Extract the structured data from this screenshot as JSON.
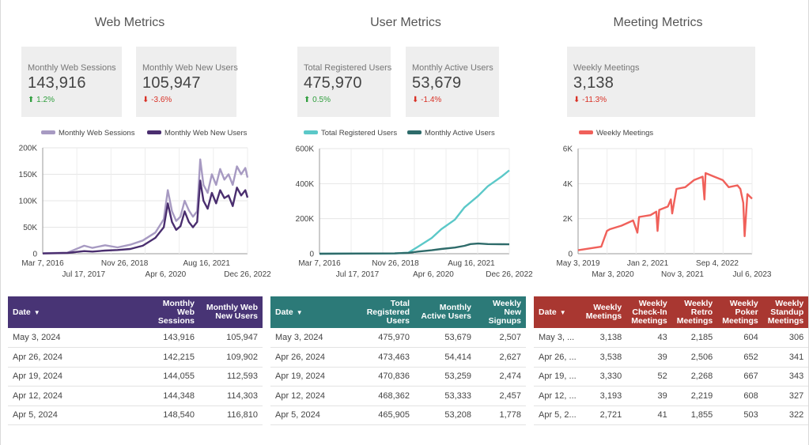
{
  "sections": {
    "web": {
      "title": "Web Metrics"
    },
    "user": {
      "title": "User Metrics"
    },
    "meeting": {
      "title": "Meeting Metrics"
    }
  },
  "kpis": {
    "web_sessions": {
      "label": "Monthly Web Sessions",
      "value": "143,916",
      "delta": "1.2%",
      "arrow": "⬆"
    },
    "web_new_users": {
      "label": "Monthly Web New Users",
      "value": "105,947",
      "delta": "-3.6%",
      "arrow": "⬇"
    },
    "total_registered": {
      "label": "Total Registered Users",
      "value": "475,970",
      "delta": "0.5%",
      "arrow": "⬆"
    },
    "monthly_active": {
      "label": "Monthly Active Users",
      "value": "53,679",
      "delta": "-1.4%",
      "arrow": "⬇"
    },
    "weekly_meetings": {
      "label": "Weekly Meetings",
      "value": "3,138",
      "delta": "-11.3%",
      "arrow": "⬇"
    }
  },
  "colors": {
    "web_sessions": "#a79ac2",
    "web_new_users": "#4a2e6f",
    "total_registered": "#5bc8c8",
    "monthly_active": "#2e6b6a",
    "weekly_meetings": "#f0605a",
    "header_web": "#483475",
    "header_user": "#2c7a78",
    "header_meeting": "#a93731"
  },
  "chart_data": [
    {
      "type": "line",
      "y_ticks": [
        "0",
        "50K",
        "100K",
        "150K",
        "200K"
      ],
      "ylim": [
        0,
        200000
      ],
      "xlim": [
        "2016-03-07",
        "2024-05-03"
      ],
      "x_ticks_row1": [
        "Mar 7, 2016",
        "Nov 26, 2018",
        "Aug 16, 2021"
      ],
      "x_ticks_row2": [
        "Jul 17, 2017",
        "Apr 6, 2020",
        "Dec 26, 2022"
      ],
      "series": [
        {
          "name": "Monthly Web Sessions",
          "x": [
            "2016-03-07",
            "2017-03-01",
            "2017-11-01",
            "2018-03-01",
            "2018-09-01",
            "2019-03-01",
            "2019-09-01",
            "2020-03-01",
            "2020-09-01",
            "2021-01-01",
            "2021-03-01",
            "2021-05-01",
            "2021-07-01",
            "2021-09-01",
            "2021-11-01",
            "2022-01-01",
            "2022-03-01",
            "2022-05-01",
            "2022-06-15",
            "2022-08-01",
            "2022-10-01",
            "2022-12-01",
            "2023-02-01",
            "2023-04-01",
            "2023-06-01",
            "2023-08-01",
            "2023-10-01",
            "2023-12-01",
            "2024-02-01",
            "2024-04-01",
            "2024-05-03"
          ],
          "values": [
            1000,
            2000,
            15000,
            11000,
            16000,
            12000,
            17000,
            25000,
            40000,
            65000,
            120000,
            80000,
            62000,
            70000,
            100000,
            82000,
            70000,
            80000,
            178000,
            130000,
            115000,
            150000,
            130000,
            160000,
            140000,
            150000,
            130000,
            165000,
            150000,
            162000,
            143916
          ]
        },
        {
          "name": "Monthly Web New Users",
          "x": [
            "2016-03-07",
            "2017-03-01",
            "2017-11-01",
            "2018-03-01",
            "2018-09-01",
            "2019-03-01",
            "2019-09-01",
            "2020-03-01",
            "2020-09-01",
            "2021-01-01",
            "2021-03-01",
            "2021-05-01",
            "2021-07-01",
            "2021-09-01",
            "2021-11-01",
            "2022-01-01",
            "2022-03-01",
            "2022-05-01",
            "2022-06-15",
            "2022-08-01",
            "2022-10-01",
            "2022-12-01",
            "2023-02-01",
            "2023-04-01",
            "2023-06-01",
            "2023-08-01",
            "2023-10-01",
            "2023-12-01",
            "2024-02-01",
            "2024-04-01",
            "2024-05-03"
          ],
          "values": [
            500,
            1500,
            5000,
            4000,
            6000,
            7000,
            9000,
            15000,
            30000,
            50000,
            95000,
            60000,
            45000,
            52000,
            80000,
            60000,
            50000,
            60000,
            138000,
            100000,
            85000,
            115000,
            95000,
            120000,
            105000,
            110000,
            90000,
            125000,
            110000,
            120000,
            105947
          ]
        }
      ]
    },
    {
      "type": "line",
      "y_ticks": [
        "0",
        "200K",
        "400K",
        "600K"
      ],
      "ylim": [
        0,
        600000
      ],
      "xlim": [
        "2016-03-07",
        "2024-05-03"
      ],
      "x_ticks_row1": [
        "Mar 7, 2016",
        "Nov 26, 2018",
        "Aug 16, 2021"
      ],
      "x_ticks_row2": [
        "Jul 17, 2017",
        "Apr 6, 2020",
        "Dec 26, 2022"
      ],
      "series": [
        {
          "name": "Total Registered Users",
          "x": [
            "2016-03-07",
            "2019-06-01",
            "2020-01-01",
            "2020-06-01",
            "2021-01-01",
            "2021-06-01",
            "2022-01-01",
            "2022-06-01",
            "2023-01-01",
            "2023-06-01",
            "2024-01-01",
            "2024-05-03"
          ],
          "values": [
            0,
            2000,
            6000,
            40000,
            90000,
            140000,
            195000,
            265000,
            330000,
            385000,
            440000,
            475970
          ]
        },
        {
          "name": "Monthly Active Users",
          "x": [
            "2016-03-07",
            "2019-06-01",
            "2020-01-01",
            "2020-06-01",
            "2021-01-01",
            "2021-06-01",
            "2022-01-01",
            "2022-06-01",
            "2022-09-01",
            "2023-01-01",
            "2023-06-01",
            "2024-01-01",
            "2024-05-03"
          ],
          "values": [
            0,
            2000,
            5000,
            12000,
            20000,
            27000,
            35000,
            45000,
            55000,
            58000,
            55000,
            54000,
            53679
          ]
        }
      ]
    },
    {
      "type": "line",
      "y_ticks": [
        "0",
        "2K",
        "4K",
        "6K"
      ],
      "ylim": [
        0,
        6000
      ],
      "xlim": [
        "2019-05-03",
        "2024-05-03"
      ],
      "x_ticks_row1": [
        "May 3, 2019",
        "Jan 2, 2021",
        "Sep 4, 2022"
      ],
      "x_ticks_row2": [
        "Mar 3, 2020",
        "Nov 3, 2021",
        "Jul 6, 2023"
      ],
      "series": [
        {
          "name": "Weekly Meetings",
          "x": [
            "2019-05-03",
            "2019-09-01",
            "2020-01-01",
            "2020-03-01",
            "2020-04-01",
            "2020-08-01",
            "2020-12-01",
            "2021-01-15",
            "2021-02-01",
            "2021-06-01",
            "2021-08-01",
            "2021-08-15",
            "2021-09-01",
            "2021-12-01",
            "2022-01-01",
            "2022-01-15",
            "2022-03-01",
            "2022-06-01",
            "2022-09-01",
            "2022-12-01",
            "2022-12-20",
            "2023-01-01",
            "2023-04-01",
            "2023-07-01",
            "2023-09-01",
            "2023-12-01",
            "2024-01-01",
            "2024-02-01",
            "2024-02-15",
            "2024-03-15",
            "2024-05-03"
          ],
          "values": [
            200,
            300,
            400,
            1300,
            1400,
            1600,
            1900,
            1200,
            2100,
            2200,
            2400,
            1300,
            2500,
            2700,
            3100,
            2300,
            3700,
            3800,
            4200,
            4400,
            3100,
            4600,
            4400,
            4200,
            3800,
            3900,
            3700,
            2900,
            1000,
            3400,
            3138
          ]
        }
      ]
    }
  ],
  "tables": {
    "web": {
      "headers": [
        "Date",
        "Monthly Web Sessions",
        "Monthly Web New Users"
      ],
      "rows": [
        [
          "May 3, 2024",
          "143,916",
          "105,947"
        ],
        [
          "Apr 26, 2024",
          "142,215",
          "109,902"
        ],
        [
          "Apr 19, 2024",
          "144,055",
          "112,593"
        ],
        [
          "Apr 12, 2024",
          "144,348",
          "114,303"
        ],
        [
          "Apr 5, 2024",
          "148,540",
          "116,810"
        ]
      ]
    },
    "user": {
      "headers": [
        "Date",
        "Total Registered Users",
        "Monthly Active Users",
        "Weekly New Signups"
      ],
      "rows": [
        [
          "May 3, 2024",
          "475,970",
          "53,679",
          "2,507"
        ],
        [
          "Apr 26, 2024",
          "473,463",
          "54,414",
          "2,627"
        ],
        [
          "Apr 19, 2024",
          "470,836",
          "53,259",
          "2,474"
        ],
        [
          "Apr 12, 2024",
          "468,362",
          "53,333",
          "2,457"
        ],
        [
          "Apr 5, 2024",
          "465,905",
          "53,208",
          "1,778"
        ]
      ]
    },
    "meeting": {
      "headers": [
        "Date",
        "Weekly Meetings",
        "Weekly Check-In Meetings",
        "Weekly Retro Meetings",
        "Weekly Poker Meetings",
        "Weekly Standup Meetings"
      ],
      "rows": [
        [
          "May 3, ...",
          "3,138",
          "43",
          "2,185",
          "604",
          "306"
        ],
        [
          "Apr 26, ...",
          "3,538",
          "39",
          "2,506",
          "652",
          "341"
        ],
        [
          "Apr 19, ...",
          "3,330",
          "52",
          "2,268",
          "667",
          "343"
        ],
        [
          "Apr 12, ...",
          "3,193",
          "39",
          "2,219",
          "608",
          "327"
        ],
        [
          "Apr 5, 2...",
          "2,721",
          "41",
          "1,855",
          "503",
          "322"
        ]
      ]
    }
  }
}
